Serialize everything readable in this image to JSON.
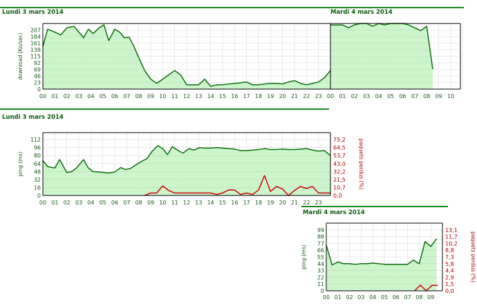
{
  "colors": {
    "header": "#1a8a1a",
    "header_text": "#0b5e0b",
    "fill": "#ccf5cc",
    "line_green": "#0d6e0d",
    "line_red": "#cc0000",
    "axis": "#000000",
    "grid": "#b8b8b8",
    "tick": "#1a5a1a",
    "red_axis": "#b40000"
  },
  "chart_data": [
    {
      "id": "dl-monday",
      "type": "area",
      "title": "Lundi 3 mars 2014",
      "ylabel": "download (Ko/sec)",
      "ylim": [
        0,
        230
      ],
      "yticks": [
        "0",
        "23",
        "46",
        "69",
        "92",
        "115",
        "138",
        "161",
        "184",
        "207"
      ],
      "xticks": [
        "00",
        "01",
        "02",
        "03",
        "04",
        "05",
        "06",
        "07",
        "08",
        "09",
        "10",
        "11",
        "12",
        "13",
        "14",
        "15",
        "16",
        "17",
        "18",
        "19",
        "20",
        "21",
        "22",
        "23"
      ],
      "xlim": [
        0,
        24
      ],
      "series": [
        {
          "x": [
            0,
            0.4,
            1,
            1.5,
            2,
            2.6,
            3,
            3.4,
            3.8,
            4.2,
            4.7,
            5.1,
            5.5,
            6,
            6.4,
            6.8,
            7.2,
            7.6,
            8,
            8.5,
            9,
            9.5,
            10,
            10.5,
            11,
            11.5,
            12,
            12.5,
            13,
            13.5,
            14,
            14.5,
            15,
            15.5,
            16,
            16.5,
            17,
            17.5,
            18,
            18.5,
            19,
            19.5,
            20,
            20.5,
            21,
            21.5,
            22,
            22.5,
            23,
            23.5,
            24
          ],
          "y": [
            150,
            210,
            200,
            190,
            215,
            220,
            200,
            180,
            210,
            195,
            215,
            225,
            170,
            210,
            200,
            180,
            182,
            150,
            110,
            65,
            35,
            20,
            35,
            50,
            65,
            50,
            15,
            15,
            15,
            35,
            10,
            15,
            15,
            18,
            20,
            22,
            25,
            15,
            15,
            18,
            20,
            20,
            18,
            25,
            30,
            20,
            15,
            20,
            25,
            40,
            65
          ]
        }
      ]
    },
    {
      "id": "dl-tuesday",
      "type": "area",
      "title": "Mardi 4 mars 2014",
      "xticks": [
        "00",
        "01",
        "02",
        "03",
        "04",
        "05",
        "06",
        "07",
        "08",
        "09",
        "10"
      ],
      "xlim": [
        0,
        10.8
      ],
      "ylim": [
        0,
        230
      ],
      "series": [
        {
          "x": [
            0,
            0.5,
            1,
            1.5,
            2,
            2.5,
            3,
            3.5,
            4,
            4.5,
            5,
            5.5,
            6,
            6.5,
            7,
            7.5,
            8,
            8.5
          ],
          "y": [
            225,
            225,
            225,
            215,
            225,
            230,
            230,
            220,
            230,
            225,
            230,
            230,
            230,
            225,
            215,
            205,
            220,
            70
          ]
        }
      ]
    },
    {
      "id": "ping-monday",
      "type": "area",
      "title": "Lundi 3 mars 2014",
      "ylabel": "ping (ms)",
      "y2label": "paquets perdus (%)",
      "ylim": [
        0,
        126
      ],
      "yticks": [
        "0",
        "16",
        "32",
        "48",
        "64",
        "80",
        "96",
        "112"
      ],
      "y2ticks": [
        "0,0",
        "10,7",
        "21,5",
        "32,2",
        "43,0",
        "53,7",
        "64,5",
        "75,2"
      ],
      "xticks": [
        "00",
        "01",
        "02",
        "03",
        "04",
        "05",
        "06",
        "07",
        "08",
        "09",
        "10",
        "11",
        "12",
        "13",
        "14",
        "15",
        "16",
        "17",
        "18",
        "19",
        "20",
        "21",
        "22",
        "23"
      ],
      "xlim": [
        0,
        24
      ],
      "series": [
        {
          "name": "ping",
          "x": [
            0,
            0.4,
            1,
            1.4,
            2,
            2.4,
            2.8,
            3.4,
            3.8,
            4.2,
            4.7,
            5.1,
            5.5,
            6,
            6.5,
            6.9,
            7.3,
            7.8,
            8.2,
            8.7,
            9.1,
            9.6,
            10,
            10.4,
            10.8,
            11.3,
            11.7,
            12.2,
            12.6,
            13.1,
            13.5,
            14,
            14.5,
            15,
            15.5,
            16,
            16.5,
            17,
            17.5,
            18,
            18.5,
            19,
            19.5,
            20,
            20.5,
            21,
            21.5,
            22,
            22.5,
            23,
            23.5,
            24
          ],
          "y": [
            70,
            58,
            55,
            72,
            46,
            48,
            55,
            72,
            55,
            48,
            47,
            46,
            45,
            47,
            56,
            52,
            54,
            62,
            68,
            74,
            88,
            100,
            94,
            82,
            98,
            90,
            85,
            94,
            91,
            96,
            95,
            95,
            96,
            95,
            94,
            93,
            90,
            90,
            91,
            92,
            94,
            92,
            92,
            93,
            92,
            92,
            93,
            94,
            91,
            89,
            90,
            80
          ]
        },
        {
          "name": "paquets perdus",
          "x": [
            8.5,
            9,
            9.5,
            10,
            10.5,
            11,
            11.5,
            12,
            12.5,
            13,
            13.5,
            14,
            14.5,
            15,
            15.5,
            16,
            16.5,
            17,
            17.5,
            18,
            18.5,
            19,
            19.5,
            20,
            20.5,
            21,
            21.5,
            22,
            22.5,
            23,
            23.5,
            24
          ],
          "y": [
            0,
            5,
            5,
            19,
            10,
            5,
            5,
            5,
            5,
            5,
            5,
            5,
            2,
            5,
            11,
            11,
            2,
            5,
            2,
            11,
            40,
            8,
            18,
            13,
            0,
            10,
            18,
            14,
            18,
            5,
            5,
            5
          ]
        }
      ]
    },
    {
      "id": "ping-tuesday",
      "type": "area",
      "title": "Mardi 4 mars 2014",
      "ylabel": "ping (ms)",
      "y2label": "paquets perdus (%)",
      "ylim": [
        0,
        110
      ],
      "yticks": [
        "0",
        "11",
        "22",
        "33",
        "44",
        "55",
        "66",
        "77",
        "88",
        "99"
      ],
      "y2ticks": [
        "0,0",
        "1,5",
        "2,9",
        "4,4",
        "5,8",
        "7,3",
        "8,8",
        "10,2",
        "11,7",
        "13,1"
      ],
      "xticks": [
        "00",
        "01",
        "02",
        "03",
        "04",
        "05",
        "06",
        "07",
        "08",
        "09"
      ],
      "xlim": [
        0,
        10
      ],
      "series": [
        {
          "name": "ping",
          "x": [
            0,
            0.5,
            1,
            1.5,
            2,
            2.5,
            3,
            3.5,
            4,
            4.5,
            5,
            5.5,
            6,
            6.5,
            7,
            7.5,
            8,
            8.5,
            9,
            9.5
          ],
          "y": [
            74,
            42,
            47,
            44,
            44,
            43,
            44,
            44,
            45,
            44,
            43,
            43,
            43,
            43,
            43,
            50,
            44,
            80,
            72,
            85
          ]
        },
        {
          "name": "paquets perdus",
          "x": [
            7.6,
            8.1,
            8.6,
            9.1,
            9.6
          ],
          "y": [
            0,
            9.2,
            0,
            8.8,
            8.8
          ]
        }
      ]
    }
  ]
}
